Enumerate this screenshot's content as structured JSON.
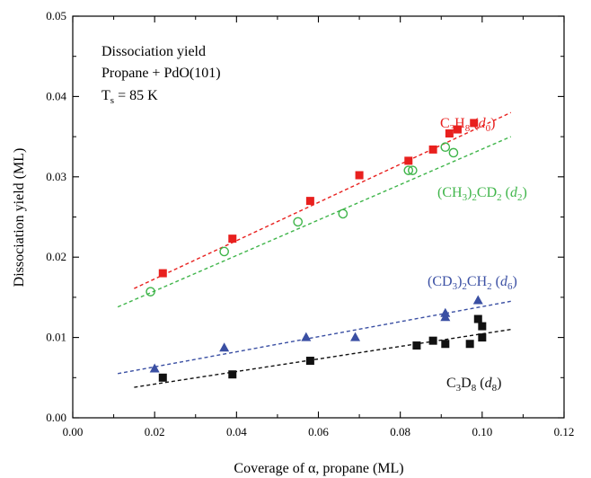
{
  "chart_data": {
    "type": "scatter",
    "xlabel": "Coverage of α, propane  (ML)",
    "ylabel": "Dissociation yield (ML)",
    "xlim": [
      0.0,
      0.12
    ],
    "ylim": [
      0.0,
      0.05
    ],
    "x_ticks": [
      "0.00",
      "0.02",
      "0.04",
      "0.06",
      "0.08",
      "0.10",
      "0.12"
    ],
    "y_ticks": [
      "0.00",
      "0.01",
      "0.02",
      "0.03",
      "0.04",
      "0.05"
    ],
    "grid": false,
    "annotation_lines": [
      "Dissociation yield",
      "Propane + PdO(101)",
      "T = 85 K"
    ],
    "annotation_ts_subscript": "s",
    "series": [
      {
        "name": "C3H8 (d0)",
        "label": {
          "parts": [
            {
              "t": "C",
              "s": ""
            },
            {
              "t": "3",
              "s": "sub"
            },
            {
              "t": "H",
              "s": ""
            },
            {
              "t": "8",
              "s": "sub"
            },
            {
              "t": " (",
              "s": ""
            },
            {
              "t": "d",
              "s": "ital"
            },
            {
              "t": "0",
              "s": "sub"
            },
            {
              "t": ")",
              "s": ""
            }
          ]
        },
        "color": "#e8201e",
        "marker": "filled-square",
        "x": [
          0.022,
          0.039,
          0.058,
          0.07,
          0.082,
          0.088,
          0.092,
          0.094,
          0.098
        ],
        "y": [
          0.018,
          0.0223,
          0.027,
          0.0302,
          0.032,
          0.0334,
          0.0354,
          0.0359,
          0.0367
        ],
        "fit": {
          "x": [
            0.015,
            0.107
          ],
          "y": [
            0.0161,
            0.038
          ]
        }
      },
      {
        "name": "(CH3)2CD2 (d2)",
        "label": {
          "parts": [
            {
              "t": "(CH",
              "s": ""
            },
            {
              "t": "3",
              "s": "sub"
            },
            {
              "t": ")",
              "s": ""
            },
            {
              "t": "2",
              "s": "sub"
            },
            {
              "t": "CD",
              "s": ""
            },
            {
              "t": "2",
              "s": "sub"
            },
            {
              "t": " (",
              "s": ""
            },
            {
              "t": "d",
              "s": "ital"
            },
            {
              "t": "2",
              "s": "sub"
            },
            {
              "t": ")",
              "s": ""
            }
          ]
        },
        "color": "#3fb54a",
        "marker": "open-circle",
        "x": [
          0.019,
          0.037,
          0.055,
          0.066,
          0.082,
          0.083,
          0.091,
          0.093
        ],
        "y": [
          0.0157,
          0.0207,
          0.0244,
          0.0254,
          0.0308,
          0.0308,
          0.0337,
          0.033
        ],
        "fit": {
          "x": [
            0.011,
            0.107
          ],
          "y": [
            0.0138,
            0.035
          ]
        }
      },
      {
        "name": "(CD3)2CH2 (d6)",
        "label": {
          "parts": [
            {
              "t": "(CD",
              "s": ""
            },
            {
              "t": "3",
              "s": "sub"
            },
            {
              "t": ")",
              "s": ""
            },
            {
              "t": "2",
              "s": "sub"
            },
            {
              "t": "CH",
              "s": ""
            },
            {
              "t": "2",
              "s": "sub"
            },
            {
              "t": " (",
              "s": ""
            },
            {
              "t": "d",
              "s": "ital"
            },
            {
              "t": "6",
              "s": "sub"
            },
            {
              "t": ")",
              "s": ""
            }
          ]
        },
        "color": "#3a4fa3",
        "marker": "filled-triangle",
        "x": [
          0.02,
          0.037,
          0.057,
          0.069,
          0.091,
          0.091,
          0.099
        ],
        "y": [
          0.0061,
          0.0087,
          0.01,
          0.01,
          0.0125,
          0.013,
          0.0146
        ],
        "fit": {
          "x": [
            0.011,
            0.107
          ],
          "y": [
            0.0055,
            0.0145
          ]
        }
      },
      {
        "name": "C3D8 (d8)",
        "label": {
          "parts": [
            {
              "t": "C",
              "s": ""
            },
            {
              "t": "3",
              "s": "sub"
            },
            {
              "t": "D",
              "s": ""
            },
            {
              "t": "8",
              "s": "sub"
            },
            {
              "t": " (",
              "s": ""
            },
            {
              "t": "d",
              "s": "ital"
            },
            {
              "t": "8",
              "s": "sub"
            },
            {
              "t": ")",
              "s": ""
            }
          ]
        },
        "color": "#111111",
        "marker": "filled-square",
        "x": [
          0.022,
          0.039,
          0.058,
          0.084,
          0.088,
          0.091,
          0.097,
          0.099,
          0.1,
          0.1
        ],
        "y": [
          0.005,
          0.0054,
          0.0071,
          0.009,
          0.0096,
          0.0092,
          0.0092,
          0.0123,
          0.0114,
          0.01
        ],
        "fit": {
          "x": [
            0.015,
            0.107
          ],
          "y": [
            0.0038,
            0.011
          ]
        }
      }
    ]
  }
}
